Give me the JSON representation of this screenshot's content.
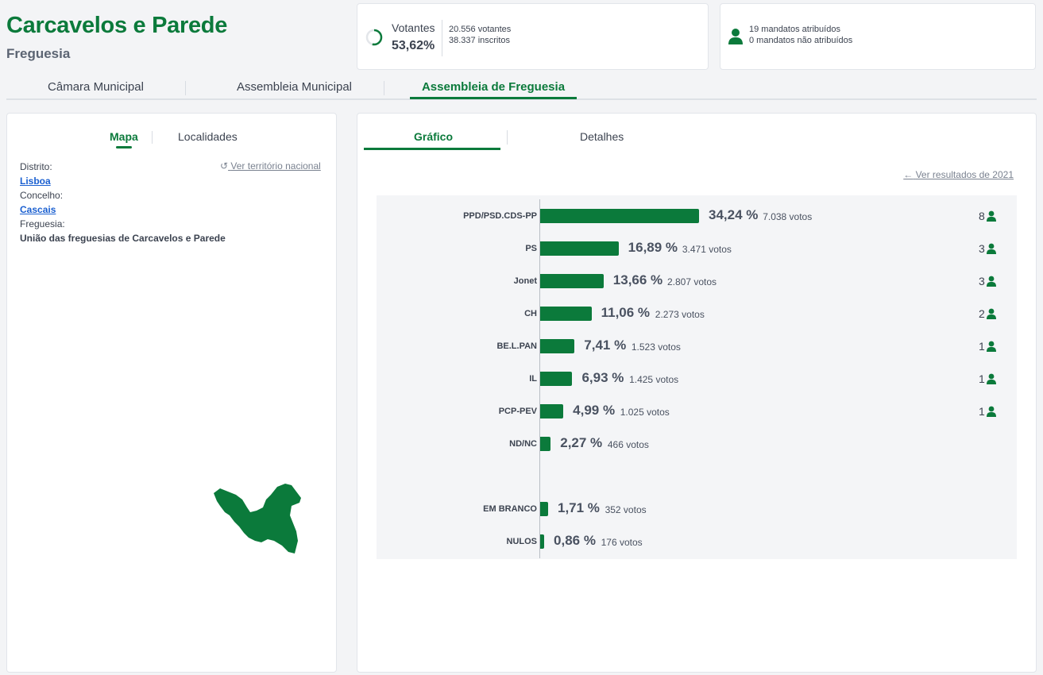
{
  "header": {
    "title": "Carcavelos e Parede",
    "subtitle": "Freguesia"
  },
  "turnout": {
    "label": "Votantes",
    "value": "53,62%",
    "voters": "20.556 votantes",
    "registered": "38.337 inscritos",
    "fraction": 0.5362
  },
  "mandates": {
    "assigned": "19 mandatos atribuídos",
    "unassigned": "0 mandatos não atribuídos"
  },
  "main_tabs": [
    {
      "label": "Câmara Municipal",
      "active": false
    },
    {
      "label": "Assembleia Municipal",
      "active": false
    },
    {
      "label": "Assembleia de Freguesia",
      "active": true
    }
  ],
  "left_tabs": [
    {
      "label": "Mapa",
      "active": true
    },
    {
      "label": "Localidades",
      "active": false
    }
  ],
  "location": {
    "district_label": "Distrito:",
    "district": "Lisboa",
    "municipality_label": "Concelho:",
    "municipality": "Cascais",
    "parish_label": "Freguesia:",
    "parish": "União das freguesias de Carcavelos e Parede",
    "national_link": "Ver território nacional"
  },
  "right_tabs": [
    {
      "label": "Gráfico",
      "active": true
    },
    {
      "label": "Detalhes",
      "active": false
    }
  ],
  "previous_results_link": "Ver resultados de 2021",
  "colors": {
    "accent": "#0b7a3b",
    "link": "#1a5fd0"
  },
  "chart_data": {
    "type": "bar",
    "orientation": "horizontal",
    "xlim": [
      0,
      100
    ],
    "rows": [
      {
        "party": "PPD/PSD.CDS-PP",
        "percent": 34.24,
        "pct_label": "34,24 %",
        "votes_label": "7.038 votos",
        "seats": "8"
      },
      {
        "party": "PS",
        "percent": 16.89,
        "pct_label": "16,89 %",
        "votes_label": "3.471 votos",
        "seats": "3"
      },
      {
        "party": "Jonet",
        "percent": 13.66,
        "pct_label": "13,66 %",
        "votes_label": "2.807 votos",
        "seats": "3"
      },
      {
        "party": "CH",
        "percent": 11.06,
        "pct_label": "11,06 %",
        "votes_label": "2.273 votos",
        "seats": "2"
      },
      {
        "party": "BE.L.PAN",
        "percent": 7.41,
        "pct_label": "7,41 %",
        "votes_label": "1.523 votos",
        "seats": "1"
      },
      {
        "party": "IL",
        "percent": 6.93,
        "pct_label": "6,93 %",
        "votes_label": "1.425 votos",
        "seats": "1"
      },
      {
        "party": "PCP-PEV",
        "percent": 4.99,
        "pct_label": "4,99 %",
        "votes_label": "1.025 votos",
        "seats": "1"
      },
      {
        "party": "ND/NC",
        "percent": 2.27,
        "pct_label": "2,27 %",
        "votes_label": "466 votos",
        "seats": ""
      },
      {
        "party": "EM BRANCO",
        "percent": 1.71,
        "pct_label": "1,71 %",
        "votes_label": "352 votos",
        "seats": "",
        "gap_before": true
      },
      {
        "party": "NULOS",
        "percent": 0.86,
        "pct_label": "0,86 %",
        "votes_label": "176 votos",
        "seats": ""
      }
    ]
  }
}
